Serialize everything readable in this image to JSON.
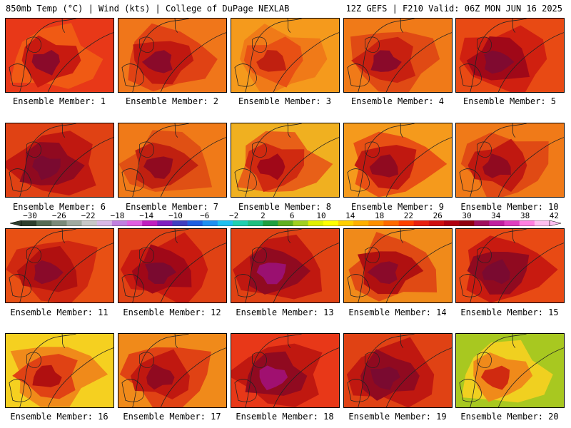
{
  "header": {
    "left_title": "850mb Temp (°C) | Wind (kts) | College of DuPage NEXLAB",
    "right_title": "12Z GEFS | F210 Valid: 06Z MON JUN 16 2025"
  },
  "panels": [
    {
      "label": "Ensemble Member: 1"
    },
    {
      "label": "Ensemble Member: 2"
    },
    {
      "label": "Ensemble Member: 3"
    },
    {
      "label": "Ensemble Member: 4"
    },
    {
      "label": "Ensemble Member: 5"
    },
    {
      "label": "Ensemble Member: 6"
    },
    {
      "label": "Ensemble Member: 7"
    },
    {
      "label": "Ensemble Member: 8"
    },
    {
      "label": "Ensemble Member: 9"
    },
    {
      "label": "Ensemble Member: 10"
    },
    {
      "label": "Ensemble Member: 11"
    },
    {
      "label": "Ensemble Member: 12"
    },
    {
      "label": "Ensemble Member: 13"
    },
    {
      "label": "Ensemble Member: 14"
    },
    {
      "label": "Ensemble Member: 15"
    },
    {
      "label": "Ensemble Member: 16"
    },
    {
      "label": "Ensemble Member: 17"
    },
    {
      "label": "Ensemble Member: 18"
    },
    {
      "label": "Ensemble Member: 19"
    },
    {
      "label": "Ensemble Member: 20"
    }
  ],
  "colorbar": {
    "ticks": [
      "−30",
      "−26",
      "−22",
      "−18",
      "−14",
      "−10",
      "−6",
      "−2",
      "2",
      "6",
      "10",
      "14",
      "18",
      "22",
      "26",
      "30",
      "34",
      "38",
      "42"
    ],
    "colors": [
      "#2f3f2f",
      "#556b55",
      "#7a8a7a",
      "#a0aaa0",
      "#c8c8c8",
      "#d9b8e6",
      "#c080e0",
      "#e060e0",
      "#c020c0",
      "#8020c0",
      "#4040c0",
      "#2060e0",
      "#2090f0",
      "#20c0f0",
      "#20d0b0",
      "#20c080",
      "#20a040",
      "#60b020",
      "#a0d020",
      "#e0f000",
      "#ffff00",
      "#ffd000",
      "#ffb000",
      "#ff9000",
      "#ff6a00",
      "#ff4000",
      "#e82010",
      "#d01010",
      "#b00010",
      "#900010",
      "#a01060",
      "#c020a0",
      "#e040c0",
      "#ff80e0",
      "#ffc0f0"
    ]
  }
}
